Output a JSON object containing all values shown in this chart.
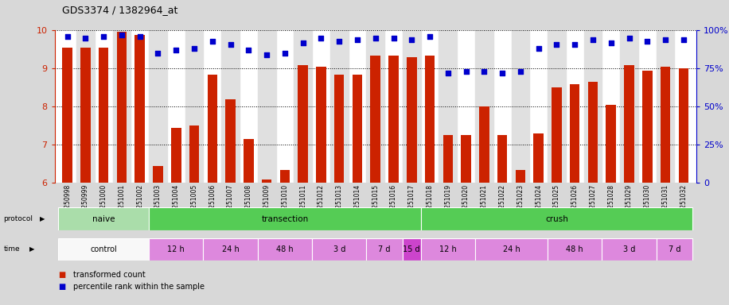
{
  "title": "GDS3374 / 1382964_at",
  "samples": [
    "GSM250998",
    "GSM250999",
    "GSM251000",
    "GSM251001",
    "GSM251002",
    "GSM251003",
    "GSM251004",
    "GSM251005",
    "GSM251006",
    "GSM251007",
    "GSM251008",
    "GSM251009",
    "GSM251010",
    "GSM251011",
    "GSM251012",
    "GSM251013",
    "GSM251014",
    "GSM251015",
    "GSM251016",
    "GSM251017",
    "GSM251018",
    "GSM251019",
    "GSM251020",
    "GSM251021",
    "GSM251022",
    "GSM251023",
    "GSM251024",
    "GSM251025",
    "GSM251026",
    "GSM251027",
    "GSM251028",
    "GSM251029",
    "GSM251030",
    "GSM251031",
    "GSM251032"
  ],
  "bar_values": [
    9.55,
    9.55,
    9.55,
    9.97,
    9.88,
    6.45,
    7.45,
    7.5,
    8.85,
    8.2,
    7.15,
    6.1,
    6.35,
    9.1,
    9.05,
    8.85,
    8.85,
    9.35,
    9.35,
    9.3,
    9.35,
    7.25,
    7.25,
    8.0,
    7.25,
    6.35,
    7.3,
    8.5,
    8.6,
    8.65,
    8.05,
    9.1,
    8.95,
    9.05,
    9.0
  ],
  "dot_values": [
    96,
    95,
    96,
    97,
    96,
    85,
    87,
    88,
    93,
    91,
    87,
    84,
    85,
    92,
    95,
    93,
    94,
    95,
    95,
    94,
    96,
    72,
    73,
    73,
    72,
    73,
    88,
    91,
    91,
    94,
    92,
    95,
    93,
    94,
    94
  ],
  "bar_color": "#cc2200",
  "dot_color": "#0000cc",
  "ymin": 6,
  "ymax": 10,
  "ylim_left": [
    6,
    10
  ],
  "ylim_right": [
    0,
    100
  ],
  "yticks_left": [
    6,
    7,
    8,
    9,
    10
  ],
  "yticks_right": [
    0,
    25,
    50,
    75,
    100
  ],
  "prot_groups": [
    {
      "label": "naive",
      "start": 0,
      "end": 4,
      "color": "#aaddaa"
    },
    {
      "label": "transection",
      "start": 5,
      "end": 19,
      "color": "#55cc55"
    },
    {
      "label": "crush",
      "start": 20,
      "end": 34,
      "color": "#55cc55"
    }
  ],
  "time_groups": [
    {
      "label": "control",
      "start": 0,
      "end": 4,
      "color": "#ffffff"
    },
    {
      "label": "12 h",
      "start": 5,
      "end": 7,
      "color": "#ee88ee"
    },
    {
      "label": "24 h",
      "start": 8,
      "end": 10,
      "color": "#ee88ee"
    },
    {
      "label": "48 h",
      "start": 11,
      "end": 13,
      "color": "#ee88ee"
    },
    {
      "label": "3 d",
      "start": 14,
      "end": 16,
      "color": "#ee88ee"
    },
    {
      "label": "7 d",
      "start": 17,
      "end": 18,
      "color": "#ee88ee"
    },
    {
      "label": "15 d",
      "start": 19,
      "end": 19,
      "color": "#cc44cc"
    },
    {
      "label": "12 h",
      "start": 20,
      "end": 22,
      "color": "#ee88ee"
    },
    {
      "label": "24 h",
      "start": 23,
      "end": 26,
      "color": "#ee88ee"
    },
    {
      "label": "48 h",
      "start": 27,
      "end": 29,
      "color": "#ee88ee"
    },
    {
      "label": "3 d",
      "start": 30,
      "end": 32,
      "color": "#ee88ee"
    },
    {
      "label": "7 d",
      "start": 33,
      "end": 34,
      "color": "#ee88ee"
    }
  ],
  "bg_color": "#d8d8d8",
  "plot_bg": "#ffffff",
  "col_shade": "#e0e0e0"
}
